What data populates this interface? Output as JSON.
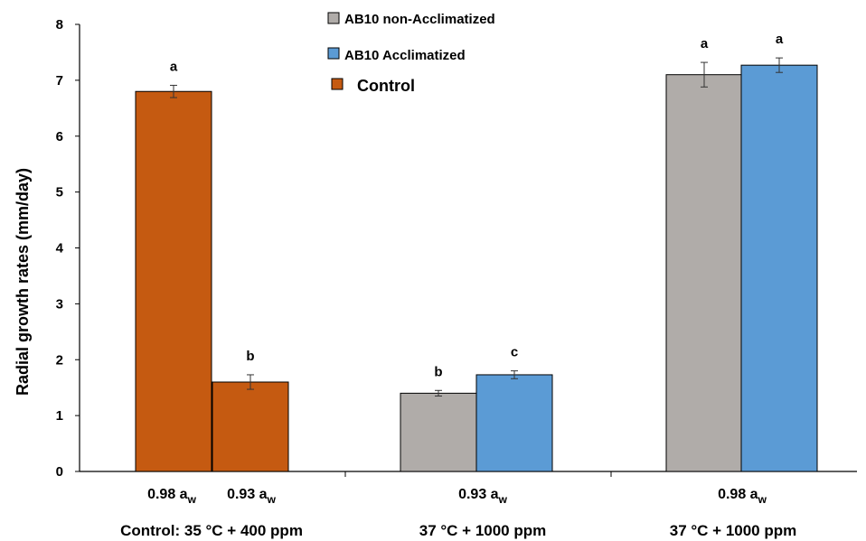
{
  "chart_data": {
    "type": "bar",
    "title": "",
    "ylabel": "Radial growth rates  (mm/day)",
    "ylim": [
      0,
      8
    ],
    "yticks": [
      0,
      1,
      2,
      3,
      4,
      5,
      6,
      7,
      8
    ],
    "grid": false,
    "legend_position": "top-center",
    "series": [
      {
        "name": "AB10 non-Acclimatized",
        "color": "#b0aca9"
      },
      {
        "name": "AB10 Acclimatized",
        "color": "#5b9bd5"
      },
      {
        "name": "Control",
        "color": "#c55a11"
      }
    ],
    "bars": [
      {
        "series": "Control",
        "category": "0.98",
        "value": 6.8,
        "error": 0.11,
        "letter": "a"
      },
      {
        "series": "Control",
        "category": "0.93",
        "value": 1.6,
        "error": 0.13,
        "letter": "b"
      },
      {
        "series": "AB10 non-Acclimatized",
        "category": "0.93",
        "value": 1.4,
        "error": 0.05,
        "letter": "b"
      },
      {
        "series": "AB10 Acclimatized",
        "category": "0.93",
        "value": 1.73,
        "error": 0.07,
        "letter": "c"
      },
      {
        "series": "AB10 non-Acclimatized",
        "category": "0.98",
        "value": 7.1,
        "error": 0.22,
        "letter": "a"
      },
      {
        "series": "AB10 Acclimatized",
        "category": "0.98",
        "value": 7.27,
        "error": 0.13,
        "letter": "a"
      }
    ],
    "category_labels": [
      {
        "main": "0.98 a",
        "sub": "w"
      },
      {
        "main": "0.93 a",
        "sub": "w"
      },
      {
        "main": "0.93 a",
        "sub": "w"
      },
      {
        "main": "0.98 a",
        "sub": "w"
      }
    ],
    "groups": [
      "Control: 35 °C + 400 ppm",
      "37 °C + 1000 ppm",
      "37 °C + 1000 ppm"
    ]
  }
}
